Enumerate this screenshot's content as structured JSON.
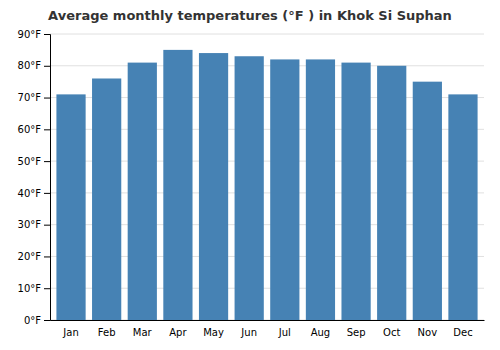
{
  "chart_data": {
    "type": "bar",
    "title": "Average monthly temperatures (°F ) in Khok Si Suphan",
    "categories": [
      "Jan",
      "Feb",
      "Mar",
      "Apr",
      "May",
      "Jun",
      "Jul",
      "Aug",
      "Sep",
      "Oct",
      "Nov",
      "Dec"
    ],
    "values": [
      71,
      76,
      81,
      85,
      84,
      83,
      82,
      82,
      81,
      80,
      75,
      71
    ],
    "ylim": [
      0,
      90
    ],
    "yticks": [
      {
        "value": 0,
        "label": "0°F"
      },
      {
        "value": 10,
        "label": "10°F"
      },
      {
        "value": 20,
        "label": "20°F"
      },
      {
        "value": 30,
        "label": "30°F"
      },
      {
        "value": 40,
        "label": "40°F"
      },
      {
        "value": 50,
        "label": "50°F"
      },
      {
        "value": 60,
        "label": "60°F"
      },
      {
        "value": 70,
        "label": "70°F"
      },
      {
        "value": 80,
        "label": "80°F"
      },
      {
        "value": 90,
        "label": "90°F"
      }
    ],
    "grid": true
  }
}
